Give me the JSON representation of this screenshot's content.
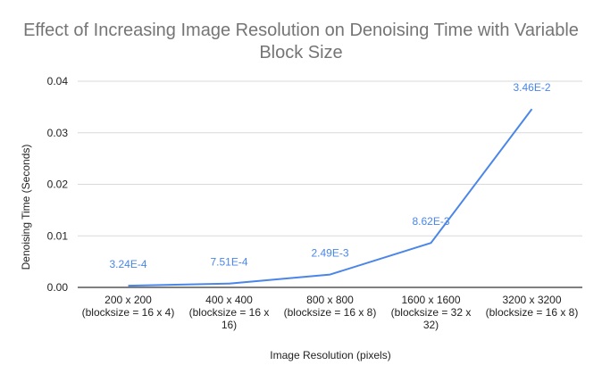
{
  "chart_data": {
    "type": "line",
    "title_lines": [
      "Effect of Increasing Image Resolution on Denoising Time with Variable",
      "Block Size"
    ],
    "xlabel": "Image Resolution (pixels)",
    "ylabel": "Denoising Time (Seconds)",
    "ylim": [
      0,
      0.04
    ],
    "yticks": [
      "0.00",
      "0.01",
      "0.02",
      "0.03",
      "0.04"
    ],
    "ytick_values": [
      0,
      0.01,
      0.02,
      0.03,
      0.04
    ],
    "grid": true,
    "legend": "none",
    "categories": [
      [
        "200 x 200",
        "(blocksize = 16 x 4)"
      ],
      [
        "400 x 400",
        "(blocksize = 16 x",
        "16)"
      ],
      [
        "800 x 800",
        "(blocksize = 16 x 8)"
      ],
      [
        "1600 x 1600",
        "(blocksize = 32 x",
        "32)"
      ],
      [
        "3200 x 3200",
        "(blocksize = 16 x 8)"
      ]
    ],
    "series": [
      {
        "values": [
          0.000324,
          0.000751,
          0.00249,
          0.00862,
          0.0346
        ],
        "data_labels": [
          "3.24E-4",
          "7.51E-4",
          "2.49E-3",
          "8.62E-3",
          "3.46E-2"
        ],
        "color": "#4a86e8"
      }
    ],
    "colors": {
      "grid": "#d9d9d9",
      "axis": "#333333",
      "title": "#757575"
    }
  }
}
